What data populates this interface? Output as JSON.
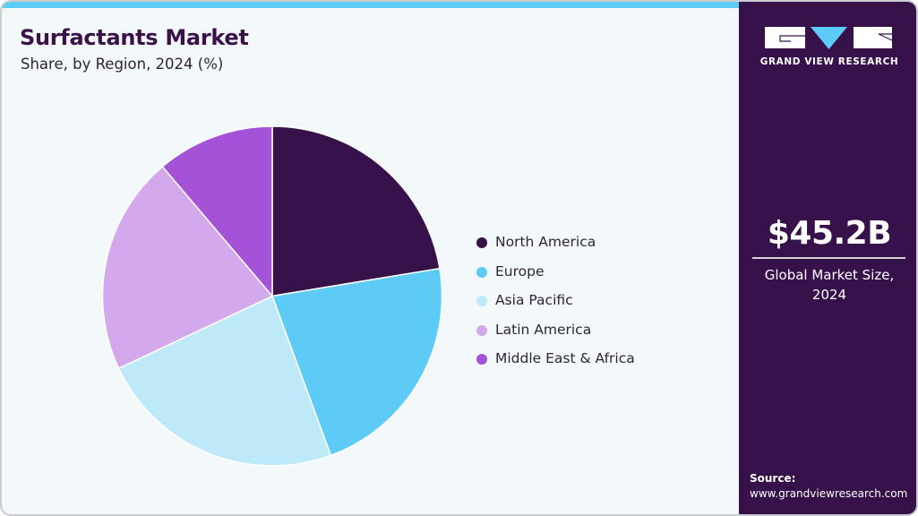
{
  "header": {
    "title": "Surfactants Market",
    "subtitle": "Share, by Region, 2024 (%)"
  },
  "sidebar": {
    "brand": "GRAND VIEW RESEARCH",
    "kpi_value": "$45.2B",
    "kpi_label_line1": "Global Market Size,",
    "kpi_label_line2": "2024",
    "source_label": "Source:",
    "source_url": "www.grandviewresearch.com"
  },
  "colors": {
    "accent_bar": "#5ecaf6",
    "sidebar_bg": "#37114a",
    "panel_bg": "#f3f8fb",
    "title": "#3a1148"
  },
  "legend": {
    "items": [
      {
        "label": "North America",
        "color": "#37114a"
      },
      {
        "label": "Europe",
        "color": "#5ecaf6"
      },
      {
        "label": "Asia Pacific",
        "color": "#bde9f9"
      },
      {
        "label": "Latin America",
        "color": "#d3a8ec"
      },
      {
        "label": "Middle East & Africa",
        "color": "#a452d7"
      }
    ]
  },
  "chart_data": {
    "type": "pie",
    "title": "Surfactants Market",
    "subtitle": "Share, by Region, 2024 (%)",
    "categories": [
      "North America",
      "Europe",
      "Asia Pacific",
      "Latin America",
      "Middle East & Africa"
    ],
    "values": [
      22.4,
      22.0,
      23.6,
      20.8,
      11.2
    ],
    "colors": [
      "#37114a",
      "#5ecaf6",
      "#bde9f9",
      "#d3a8ec",
      "#a452d7"
    ],
    "start_angle_deg": 0,
    "direction": "clockwise",
    "legend_position": "right",
    "center": [
      302,
      328.5
    ],
    "radius": 189.5,
    "annotations": [
      "$45.2B Global Market Size, 2024"
    ]
  }
}
